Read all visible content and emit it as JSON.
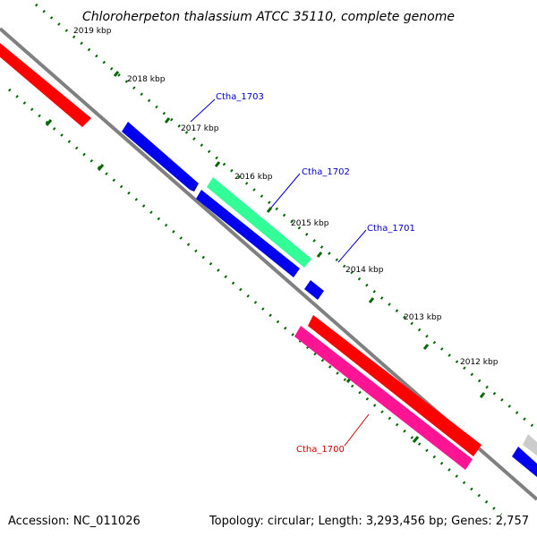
{
  "title": "Chloroherpeton thalassium ATCC 35110, complete genome",
  "accession": "Accession: NC_011026",
  "summary": "Topology: circular; Length: 3,293,456 bp; Genes: 2,757",
  "ticks": [
    "2019 kbp",
    "2018 kbp",
    "2017 kbp",
    "2016 kbp",
    "2015 kbp",
    "2014 kbp",
    "2013 kbp",
    "2012 kbp"
  ],
  "gene_labels": [
    {
      "text": "Ctha_1703",
      "color": "#0000cc"
    },
    {
      "text": "Ctha_1702",
      "color": "#0000cc"
    },
    {
      "text": "Ctha_1701",
      "color": "#0000cc"
    },
    {
      "text": "Ctha_1700",
      "color": "#cc0000"
    }
  ],
  "colors": {
    "backbone": "#808080",
    "ticks": "#006600",
    "red": "#ff0000",
    "blue": "#0000ee",
    "green": "#33ff99",
    "pink": "#ff1493",
    "grey": "#cccccc"
  }
}
